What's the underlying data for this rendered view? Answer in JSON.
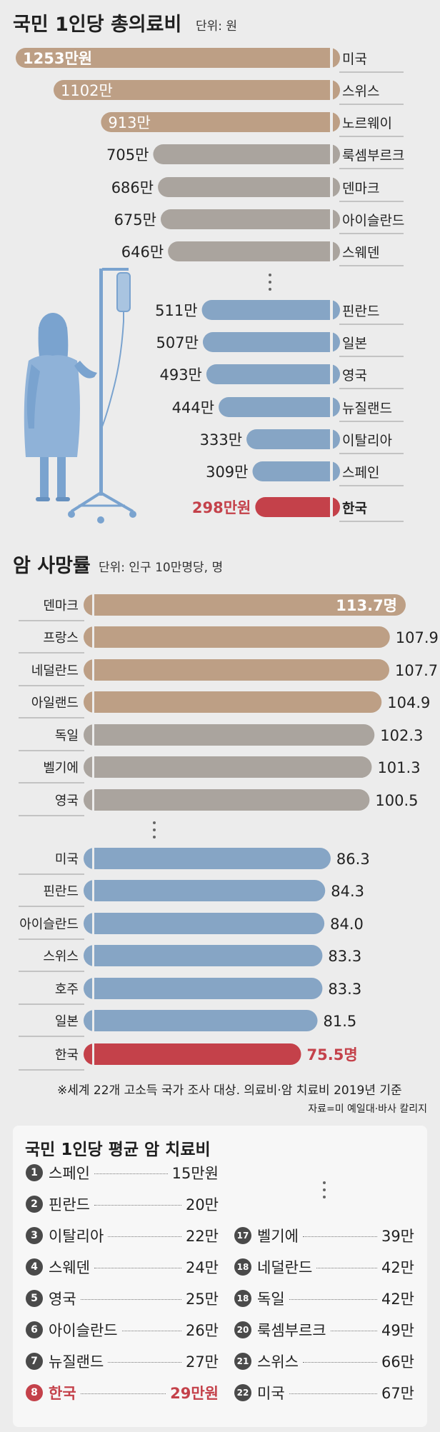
{
  "colors": {
    "tan": "#bd9f85",
    "gray": "#aaa49e",
    "blue": "#86a5c5",
    "red": "#c4414a",
    "figure": "#7aa3cf"
  },
  "icons": [
    "iv-stand-patient-illustration",
    "vertical-ellipsis-icon"
  ],
  "chart_data": [
    {
      "type": "bar",
      "title": "국민 1인당 총의료비",
      "unit_label": "단위: 원",
      "categories": [
        "미국",
        "스위스",
        "노르웨이",
        "룩셈부르크",
        "덴마크",
        "아이슬란드",
        "스웨덴",
        "핀란드",
        "일본",
        "영국",
        "뉴질랜드",
        "이탈리아",
        "스페인",
        "한국"
      ],
      "values": [
        1253,
        1102,
        913,
        705,
        686,
        675,
        646,
        511,
        507,
        493,
        444,
        333,
        309,
        298
      ],
      "value_labels": [
        "1253만원",
        "1102만",
        "913만",
        "705만",
        "686만",
        "675만",
        "646만",
        "511만",
        "507만",
        "493만",
        "444만",
        "333만",
        "309만",
        "298만원"
      ],
      "highlight": "한국"
    },
    {
      "type": "bar",
      "title": "암 사망률",
      "unit_label": "단위: 인구 10만명당, 명",
      "categories": [
        "덴마크",
        "프랑스",
        "네덜란드",
        "아일랜드",
        "독일",
        "벨기에",
        "영국",
        "미국",
        "핀란드",
        "아이슬란드",
        "스위스",
        "호주",
        "일본",
        "한국"
      ],
      "values": [
        113.7,
        107.9,
        107.7,
        104.9,
        102.3,
        101.3,
        100.5,
        86.3,
        84.3,
        84.0,
        83.3,
        83.3,
        81.5,
        75.5
      ],
      "value_labels": [
        "113.7명",
        "107.9",
        "107.7",
        "104.9",
        "102.3",
        "101.3",
        "100.5",
        "86.3",
        "84.3",
        "84.0",
        "83.3",
        "83.3",
        "81.5",
        "75.5명"
      ],
      "highlight": "한국"
    },
    {
      "type": "table",
      "title": "국민 1인당 평균 암 치료비",
      "columns": [
        [
          {
            "rank": "1",
            "name": "스페인",
            "value": "15만원"
          },
          {
            "rank": "2",
            "name": "핀란드",
            "value": "20만"
          },
          {
            "rank": "3",
            "name": "이탈리아",
            "value": "22만"
          },
          {
            "rank": "4",
            "name": "스웨덴",
            "value": "24만"
          },
          {
            "rank": "5",
            "name": "영국",
            "value": "25만"
          },
          {
            "rank": "6",
            "name": "아이슬란드",
            "value": "26만"
          },
          {
            "rank": "7",
            "name": "뉴질랜드",
            "value": "27만"
          },
          {
            "rank": "8",
            "name": "한국",
            "value": "29만원",
            "highlight": true
          }
        ],
        [
          {
            "rank": "17",
            "name": "벨기에",
            "value": "39만"
          },
          {
            "rank": "18",
            "name": "네덜란드",
            "value": "42만"
          },
          {
            "rank": "18",
            "name": "독일",
            "value": "42만"
          },
          {
            "rank": "20",
            "name": "룩셈부르크",
            "value": "49만"
          },
          {
            "rank": "21",
            "name": "스위스",
            "value": "66만"
          },
          {
            "rank": "22",
            "name": "미국",
            "value": "67만"
          }
        ]
      ]
    }
  ],
  "footnote": "※세계 22개 고소득 국가 조사 대상. 의료비·암 치료비 2019년 기준",
  "source": "자료=미 예일대·바사 칼리지"
}
